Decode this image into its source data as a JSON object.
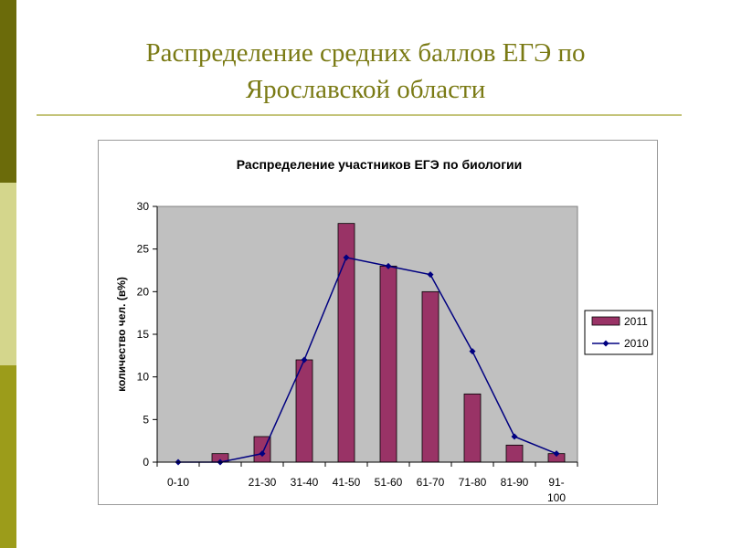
{
  "slide": {
    "title_line1": "Распределение средних  баллов ЕГЭ по",
    "title_line2": "Ярославской области"
  },
  "chart_data": {
    "type": "bar",
    "title": "Распределение участников ЕГЭ по биологии",
    "ylabel": "количество чел. (в%)",
    "xlabel": "",
    "ylim": [
      0,
      30
    ],
    "yticks": [
      0,
      5,
      10,
      15,
      20,
      25,
      30
    ],
    "grid": false,
    "legend_position": "right",
    "categories": [
      "0-10",
      "",
      "21-30",
      "31-40",
      "41-50",
      "51-60",
      "61-70",
      "71-80",
      "81-90",
      "91-100"
    ],
    "category_labels": [
      [
        "0-10"
      ],
      [
        ""
      ],
      [
        "21-30"
      ],
      [
        "31-40"
      ],
      [
        "41-50"
      ],
      [
        "51-60"
      ],
      [
        "61-70"
      ],
      [
        "71-80"
      ],
      [
        "81-90"
      ],
      [
        "91-",
        "100"
      ]
    ],
    "series": [
      {
        "name": "2011",
        "kind": "bar",
        "color": "#993366",
        "values": [
          0,
          1,
          3,
          12,
          28,
          23,
          20,
          8,
          2,
          1
        ]
      },
      {
        "name": "2010",
        "kind": "line",
        "color": "#000080",
        "values": [
          0,
          0,
          1,
          12,
          24,
          23,
          22,
          13,
          3,
          1
        ]
      }
    ],
    "plot_background": "#c0c0c0"
  }
}
